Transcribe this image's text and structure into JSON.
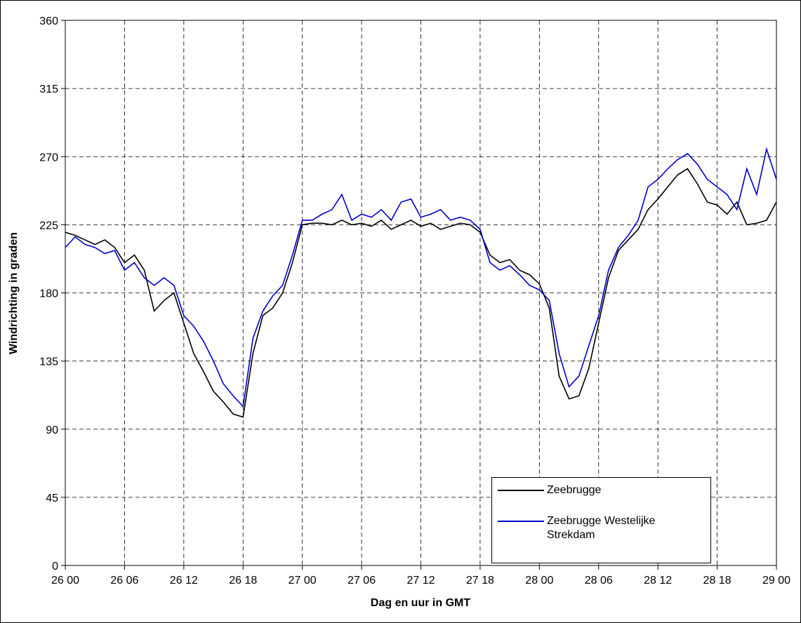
{
  "chart_data": {
    "type": "line",
    "ylabel": "Windrichting in graden",
    "xlabel": "Dag en uur in GMT",
    "xlim": [
      0,
      72
    ],
    "xticks": [
      {
        "value": 0,
        "label": "26 00"
      },
      {
        "value": 6,
        "label": "26 06"
      },
      {
        "value": 12,
        "label": "26 12"
      },
      {
        "value": 18,
        "label": "26 18"
      },
      {
        "value": 24,
        "label": "27 00"
      },
      {
        "value": 30,
        "label": "27 06"
      },
      {
        "value": 36,
        "label": "27 12"
      },
      {
        "value": 42,
        "label": "27 18"
      },
      {
        "value": 48,
        "label": "28 00"
      },
      {
        "value": 54,
        "label": "28 06"
      },
      {
        "value": 60,
        "label": "28 12"
      },
      {
        "value": 66,
        "label": "28 18"
      },
      {
        "value": 72,
        "label": "29 00"
      }
    ],
    "ylim": [
      0,
      360
    ],
    "yticks": [
      0,
      45,
      90,
      135,
      180,
      225,
      270,
      315,
      360
    ],
    "grid": true,
    "legend": "lower right",
    "x": [
      0,
      1,
      2,
      3,
      4,
      5,
      6,
      7,
      8,
      9,
      10,
      11,
      12,
      13,
      14,
      15,
      16,
      17,
      18,
      19,
      20,
      21,
      22,
      23,
      24,
      25,
      26,
      27,
      28,
      29,
      30,
      31,
      32,
      33,
      34,
      35,
      36,
      37,
      38,
      39,
      40,
      41,
      42,
      43,
      44,
      45,
      46,
      47,
      48,
      49,
      50,
      51,
      52,
      53,
      54,
      55,
      56,
      57,
      58,
      59,
      60,
      61,
      62,
      63,
      64,
      65,
      66,
      67,
      68,
      69,
      70,
      71,
      72
    ],
    "series": [
      {
        "name": "Zeebrugge",
        "color": "#000000",
        "values": [
          220,
          218,
          215,
          212,
          215,
          210,
          200,
          205,
          195,
          168,
          175,
          180,
          160,
          140,
          128,
          115,
          108,
          100,
          98,
          140,
          165,
          170,
          180,
          200,
          225,
          226,
          226,
          225,
          228,
          225,
          226,
          224,
          228,
          222,
          225,
          228,
          224,
          226,
          222,
          224,
          226,
          225,
          220,
          205,
          200,
          202,
          195,
          192,
          186,
          170,
          125,
          110,
          112,
          130,
          160,
          190,
          208,
          215,
          222,
          235,
          242,
          250,
          258,
          262,
          252,
          240,
          238,
          232,
          240,
          225,
          226,
          228,
          240
        ]
      },
      {
        "name": "Zeebrugge Westelijke Strekdam",
        "color": "#0000cc",
        "values": [
          210,
          217,
          212,
          210,
          206,
          208,
          195,
          200,
          190,
          185,
          190,
          185,
          165,
          158,
          148,
          135,
          120,
          112,
          105,
          150,
          168,
          178,
          185,
          205,
          228,
          228,
          232,
          235,
          245,
          228,
          232,
          230,
          235,
          228,
          240,
          242,
          230,
          232,
          235,
          228,
          230,
          228,
          222,
          200,
          195,
          198,
          192,
          185,
          182,
          175,
          140,
          118,
          125,
          145,
          165,
          195,
          210,
          218,
          228,
          250,
          255,
          262,
          268,
          272,
          265,
          255,
          250,
          245,
          235,
          262,
          245,
          275,
          255
        ]
      }
    ]
  }
}
